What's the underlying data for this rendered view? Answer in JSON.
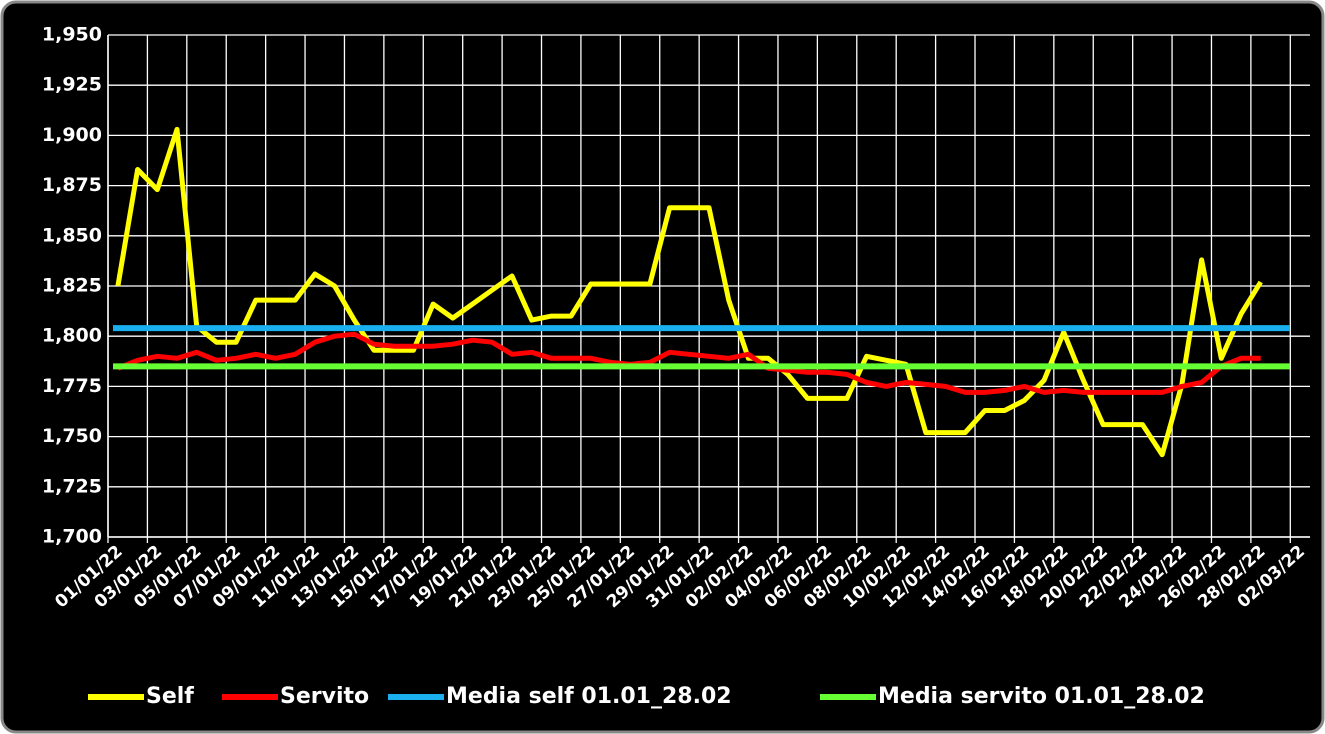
{
  "chart_data": {
    "type": "line",
    "categories": [
      "01/01/22",
      null,
      "03/01/22",
      null,
      "05/01/22",
      null,
      "07/01/22",
      null,
      "09/01/22",
      null,
      "11/01/22",
      null,
      "13/01/22",
      null,
      "15/01/22",
      null,
      "17/01/22",
      null,
      "19/01/22",
      null,
      "21/01/22",
      null,
      "23/01/22",
      null,
      "25/01/22",
      null,
      "27/01/22",
      null,
      "29/01/22",
      null,
      "31/01/22",
      null,
      "02/02/22",
      null,
      "04/02/22",
      null,
      "06/02/22",
      null,
      "08/02/22",
      null,
      "10/02/22",
      null,
      "12/02/22",
      null,
      "14/02/22",
      null,
      "16/02/22",
      null,
      "18/02/22",
      null,
      "20/02/22",
      null,
      "22/02/22",
      null,
      "24/02/22",
      null,
      "26/02/22",
      null,
      "28/02/22",
      null,
      "02/03/22"
    ],
    "series": [
      {
        "name": "Self",
        "color": "#ffff00",
        "values": [
          1.825,
          1.883,
          1.873,
          1.903,
          1.805,
          1.797,
          1.797,
          1.818,
          1.818,
          1.818,
          1.831,
          1.825,
          1.808,
          1.793,
          1.793,
          1.793,
          1.816,
          1.809,
          1.816,
          1.823,
          1.83,
          1.808,
          1.81,
          1.81,
          1.826,
          1.826,
          1.826,
          1.826,
          1.864,
          1.864,
          1.864,
          1.818,
          1.789,
          1.789,
          1.781,
          1.769,
          1.769,
          1.769,
          1.79,
          1.788,
          1.786,
          1.752,
          1.752,
          1.752,
          1.763,
          1.763,
          1.768,
          1.778,
          1.802,
          1.778,
          1.756,
          1.756,
          1.756,
          1.741,
          1.776,
          1.838,
          1.789,
          1.811,
          1.827,
          null,
          null
        ]
      },
      {
        "name": "Servito",
        "color": "#ff0000",
        "values": [
          1.784,
          1.788,
          1.79,
          1.789,
          1.792,
          1.788,
          1.789,
          1.791,
          1.789,
          1.791,
          1.797,
          1.8,
          1.801,
          1.796,
          1.795,
          1.795,
          1.795,
          1.796,
          1.798,
          1.797,
          1.791,
          1.792,
          1.789,
          1.789,
          1.789,
          1.787,
          1.786,
          1.787,
          1.792,
          1.791,
          1.79,
          1.789,
          1.791,
          1.784,
          1.783,
          1.782,
          1.782,
          1.781,
          1.777,
          1.775,
          1.777,
          1.776,
          1.775,
          1.772,
          1.772,
          1.773,
          1.775,
          1.772,
          1.773,
          1.772,
          1.772,
          1.772,
          1.772,
          1.772,
          1.775,
          1.777,
          1.785,
          1.789,
          1.789,
          null,
          null
        ]
      },
      {
        "name": "Media self 01.01_28.02",
        "color": "#1ab0f0",
        "value": 1.804
      },
      {
        "name": "Media servito 01.01_28.02",
        "color": "#66ff33",
        "value": 1.785
      }
    ],
    "ylim": [
      1.7,
      1.95
    ],
    "yticks": [
      {
        "value": 1.7,
        "label": "1,700"
      },
      {
        "value": 1.725,
        "label": "1,725"
      },
      {
        "value": 1.75,
        "label": "1,750"
      },
      {
        "value": 1.775,
        "label": "1,775"
      },
      {
        "value": 1.8,
        "label": "1,800"
      },
      {
        "value": 1.825,
        "label": "1,825"
      },
      {
        "value": 1.85,
        "label": "1,850"
      },
      {
        "value": 1.875,
        "label": "1,875"
      },
      {
        "value": 1.9,
        "label": "1,900"
      },
      {
        "value": 1.925,
        "label": "1,925"
      },
      {
        "value": 1.95,
        "label": "1,950"
      }
    ],
    "grid": true
  }
}
